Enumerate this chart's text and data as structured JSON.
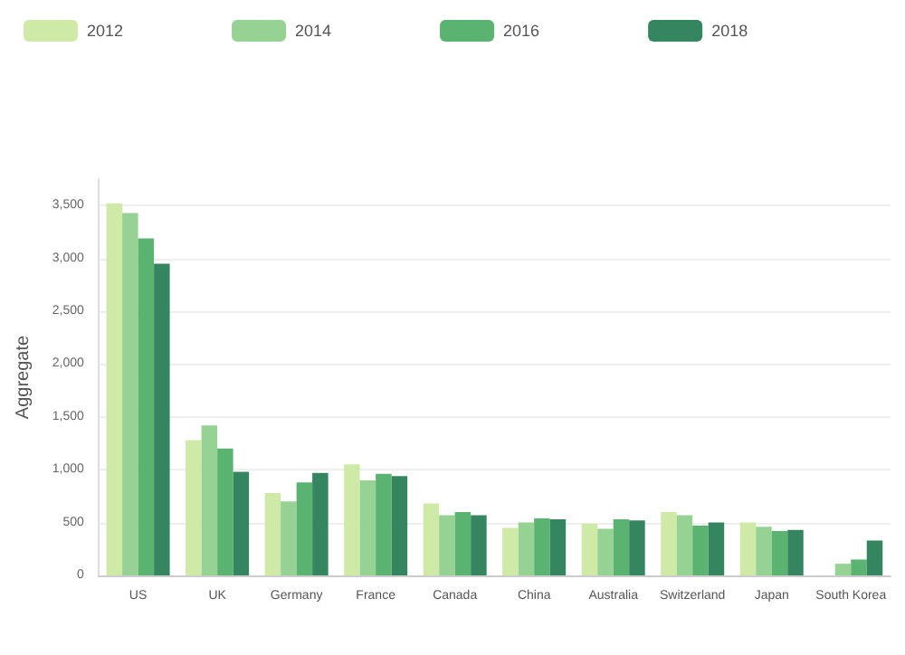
{
  "chart_data": {
    "type": "bar",
    "ylabel": "Aggregate",
    "categories": [
      "US",
      "UK",
      "Germany",
      "France",
      "Canada",
      "China",
      "Australia",
      "Switzerland",
      "Japan",
      "South Korea"
    ],
    "series": [
      {
        "name": "2012",
        "color": "#cfeaa7",
        "values": [
          3520,
          1280,
          780,
          1050,
          680,
          450,
          490,
          600,
          500,
          null
        ]
      },
      {
        "name": "2014",
        "color": "#95d294",
        "values": [
          3430,
          1420,
          700,
          900,
          570,
          500,
          440,
          570,
          460,
          110
        ]
      },
      {
        "name": "2016",
        "color": "#5ab370",
        "values": [
          3190,
          1200,
          880,
          960,
          600,
          540,
          530,
          470,
          420,
          150
        ]
      },
      {
        "name": "2018",
        "color": "#358660",
        "values": [
          2950,
          980,
          970,
          940,
          570,
          530,
          520,
          500,
          430,
          330
        ]
      }
    ],
    "ylim": [
      0,
      3750
    ],
    "yticks": [
      {
        "value": 0,
        "label": "0"
      },
      {
        "value": 500,
        "label": "500"
      },
      {
        "value": 1000,
        "label": "1,000"
      },
      {
        "value": 1500,
        "label": "1,500"
      },
      {
        "value": 2000,
        "label": "2,000"
      },
      {
        "value": 2500,
        "label": "2,500"
      },
      {
        "value": 3000,
        "label": "3,000"
      },
      {
        "value": 3500,
        "label": "3,500"
      }
    ],
    "grid": "y",
    "legend": "top left"
  }
}
